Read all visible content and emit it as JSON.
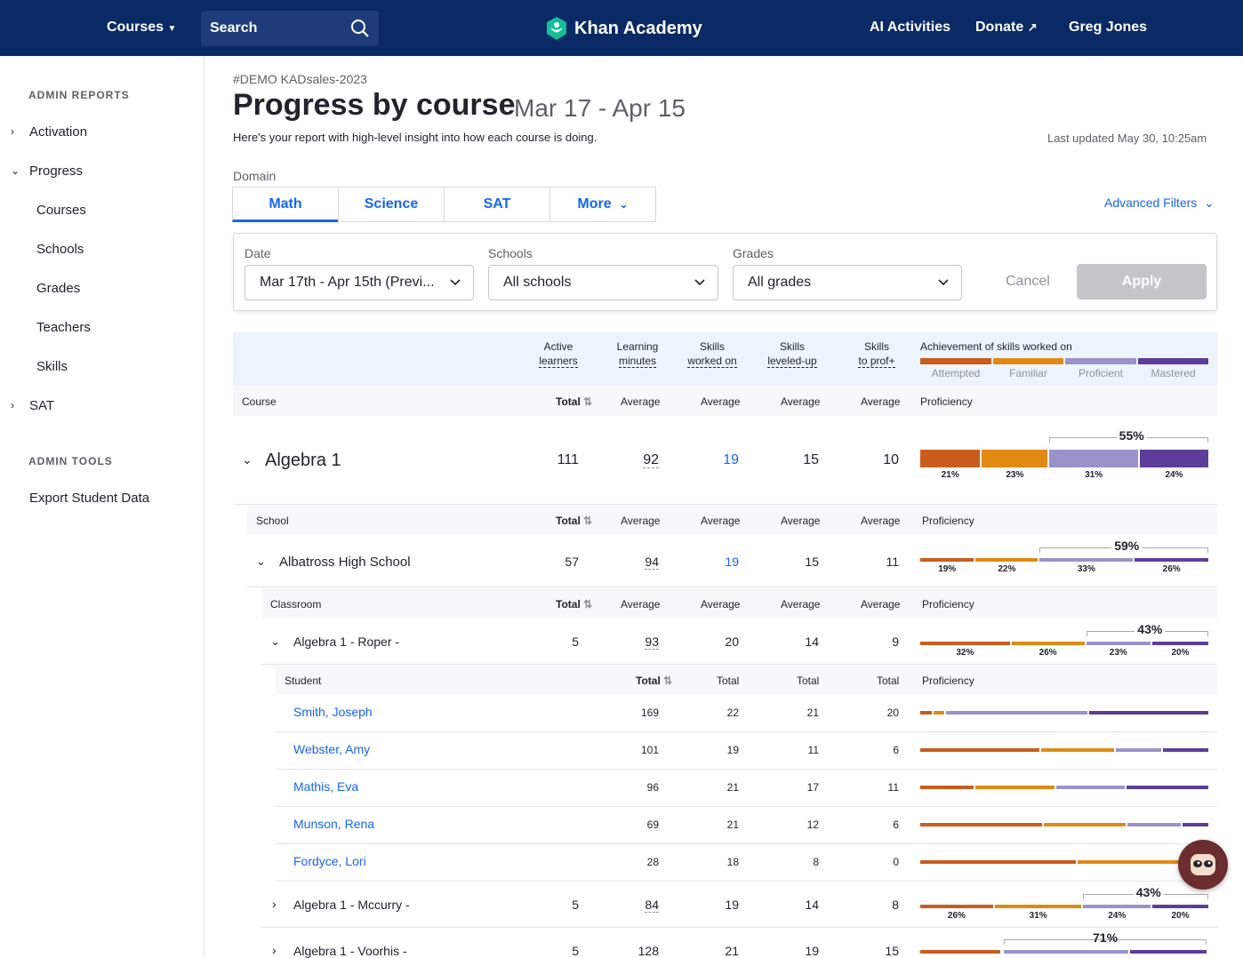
{
  "topbar": {
    "courses": "Courses",
    "search": "Search",
    "logo": "Khan Academy",
    "ai": "AI Activities",
    "donate": "Donate",
    "user": "Greg Jones"
  },
  "sidebar": {
    "admin_reports": "ADMIN REPORTS",
    "activation": "Activation",
    "progress": "Progress",
    "courses": "Courses",
    "schools": "Schools",
    "grades": "Grades",
    "teachers": "Teachers",
    "skills": "Skills",
    "sat": "SAT",
    "admin_tools": "ADMIN TOOLS",
    "export": "Export Student Data"
  },
  "header": {
    "org": "#DEMO KADsales-2023",
    "title": "Progress by course",
    "range": "Mar 17 - Apr 15",
    "desc": "Here's your report with high-level insight into how each course is doing.",
    "updated": "Last updated May 30, 10:25am"
  },
  "domain": {
    "label": "Domain",
    "tabs": [
      "Math",
      "Science",
      "SAT",
      "More"
    ],
    "advanced": "Advanced Filters"
  },
  "filters": {
    "date_label": "Date",
    "date_value": "Mar 17th - Apr 15th (Previ...",
    "schools_label": "Schools",
    "schools_value": "All schools",
    "grades_label": "Grades",
    "grades_value": "All grades",
    "cancel": "Cancel",
    "apply": "Apply"
  },
  "table": {
    "h_active": [
      "Active",
      "learners"
    ],
    "h_minutes": [
      "Learning",
      "minutes"
    ],
    "h_worked": [
      "Skills",
      "worked on"
    ],
    "h_leveled": [
      "Skills",
      "leveled-up"
    ],
    "h_prof": [
      "Skills",
      "to prof+"
    ],
    "h_achievement": "Achievement of skills worked on",
    "legend": [
      "Attempted",
      "Familiar",
      "Proficient",
      "Mastered"
    ],
    "course": "Course",
    "total": "Total",
    "average": "Average",
    "proficiency": "Proficiency",
    "school": "School",
    "classroom": "Classroom",
    "student": "Student",
    "total_lbl": "Total"
  },
  "colors": {
    "attempted": "#c95d1e",
    "familiar": "#e08a13",
    "proficient": "#9893c9",
    "mastered": "#5c3d99"
  },
  "rows": {
    "course": {
      "name": "Algebra 1",
      "learners": "111",
      "minutes": "92",
      "worked": "19",
      "leveled": "15",
      "prof": "10",
      "big": "55%",
      "p": [
        21,
        23,
        31,
        24
      ],
      "labels": [
        "21%",
        "23%",
        "31%",
        "24%"
      ]
    },
    "school": {
      "name": "Albatross High School",
      "learners": "57",
      "minutes": "94",
      "worked": "19",
      "leveled": "15",
      "prof": "11",
      "big": "59%",
      "p": [
        19,
        22,
        33,
        26
      ],
      "labels": [
        "19%",
        "22%",
        "33%",
        "26%"
      ]
    },
    "class1": {
      "name": "Algebra 1 - Roper -",
      "learners": "5",
      "minutes": "93",
      "worked": "20",
      "leveled": "14",
      "prof": "9",
      "big": "43%",
      "p": [
        32,
        26,
        23,
        20
      ],
      "labels": [
        "32%",
        "26%",
        "23%",
        "20%"
      ]
    },
    "students": [
      {
        "name": "Smith, Joseph",
        "total": "169",
        "worked": "22",
        "leveled": "21",
        "prof": "20",
        "p": [
          4,
          4,
          50,
          42
        ]
      },
      {
        "name": "Webster, Amy",
        "total": "101",
        "worked": "19",
        "leveled": "11",
        "prof": "6",
        "p": [
          42,
          26,
          16,
          16
        ]
      },
      {
        "name": "Mathis, Eva",
        "total": "96",
        "worked": "21",
        "leveled": "17",
        "prof": "11",
        "p": [
          19,
          28,
          24,
          29
        ]
      },
      {
        "name": "Munson, Rena",
        "total": "69",
        "worked": "21",
        "leveled": "12",
        "prof": "6",
        "p": [
          43,
          29,
          19,
          9
        ]
      },
      {
        "name": "Fordyce, Lori",
        "total": "28",
        "worked": "18",
        "leveled": "8",
        "prof": "0",
        "p": [
          55,
          40,
          3,
          2
        ]
      }
    ],
    "class2": {
      "name": "Algebra 1 - Mccurry -",
      "learners": "5",
      "minutes": "84",
      "worked": "19",
      "leveled": "14",
      "prof": "8",
      "big": "43%",
      "p": [
        26,
        31,
        24,
        20
      ],
      "labels": [
        "26%",
        "31%",
        "24%",
        "20%"
      ]
    },
    "class3": {
      "name": "Algebra 1 - Voorhis -",
      "learners": "5",
      "minutes": "128",
      "worked": "21",
      "leveled": "19",
      "prof": "15",
      "big": "71%"
    }
  }
}
